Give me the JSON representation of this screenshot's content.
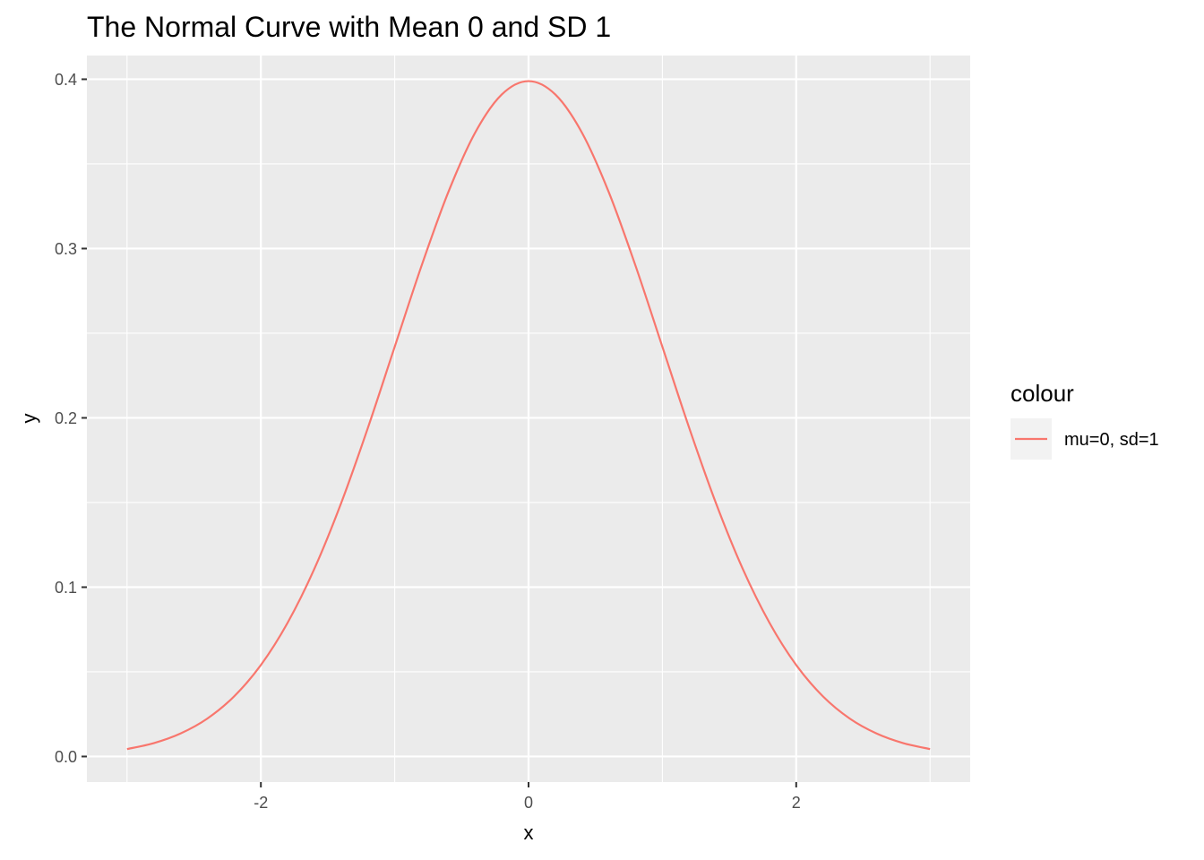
{
  "chart_data": {
    "type": "line",
    "title": "The Normal Curve with Mean 0 and SD 1",
    "xlabel": "x",
    "ylabel": "y",
    "xlim": [
      -3.3,
      3.3
    ],
    "ylim": [
      -0.0151,
      0.414
    ],
    "x_ticks": [
      {
        "value": -2,
        "label": "-2"
      },
      {
        "value": 0,
        "label": "0"
      },
      {
        "value": 2,
        "label": "2"
      }
    ],
    "y_ticks": [
      {
        "value": 0.0,
        "label": "0.0"
      },
      {
        "value": 0.1,
        "label": "0.1"
      },
      {
        "value": 0.2,
        "label": "0.2"
      },
      {
        "value": 0.3,
        "label": "0.3"
      },
      {
        "value": 0.4,
        "label": "0.4"
      }
    ],
    "x_minor": [
      -3,
      -1,
      1,
      3
    ],
    "y_minor": [
      0.05,
      0.15,
      0.25,
      0.35
    ],
    "grid": true,
    "legend": {
      "title": "colour",
      "position": "right",
      "entries": [
        {
          "label": "mu=0, sd=1",
          "color": "#F8766D"
        }
      ]
    },
    "series": [
      {
        "name": "mu=0, sd=1",
        "color": "#F8766D",
        "x": [
          -3.0,
          -2.8,
          -2.6,
          -2.4,
          -2.2,
          -2.0,
          -1.8,
          -1.6,
          -1.4,
          -1.2,
          -1.0,
          -0.8,
          -0.6,
          -0.4,
          -0.2,
          0.0,
          0.2,
          0.4,
          0.6,
          0.8,
          1.0,
          1.2,
          1.4,
          1.6,
          1.8,
          2.0,
          2.2,
          2.4,
          2.6,
          2.8,
          3.0
        ],
        "y": [
          0.0044,
          0.0079,
          0.0136,
          0.0224,
          0.0355,
          0.054,
          0.079,
          0.1109,
          0.1497,
          0.1942,
          0.242,
          0.2897,
          0.3332,
          0.3683,
          0.391,
          0.3989,
          0.391,
          0.3683,
          0.3332,
          0.2897,
          0.242,
          0.1942,
          0.1497,
          0.1109,
          0.079,
          0.054,
          0.0355,
          0.0224,
          0.0136,
          0.0079,
          0.0044
        ]
      }
    ]
  }
}
